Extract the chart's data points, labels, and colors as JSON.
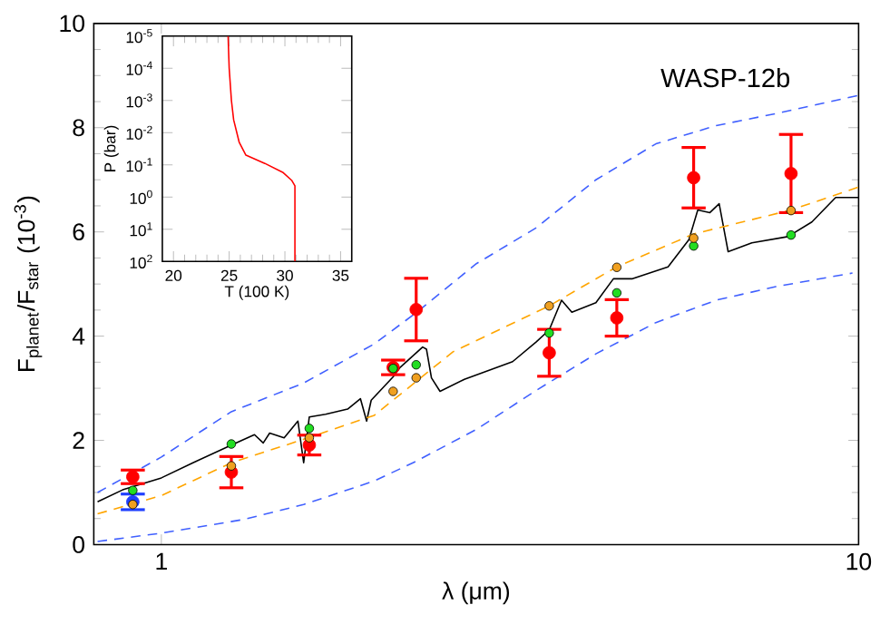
{
  "chart_data": [
    {
      "type": "line",
      "xlabel": "λ (μm)",
      "ylabel": "F$_{planet}$/F$_{star}$ (10$^{-3}$)",
      "log": "x",
      "xlim": [
        0.8,
        10
      ],
      "xticks": [
        1,
        10
      ],
      "ylim": [
        0,
        10
      ],
      "yticks": [
        0,
        2,
        4,
        6,
        8,
        10
      ],
      "annotations": [
        "WASP-12b"
      ],
      "series": [
        {
          "type": "line",
          "color": "#000000",
          "x": [
            0.81,
            0.88,
            1.0,
            1.11,
            1.26,
            1.36,
            1.4,
            1.43,
            1.5,
            1.57,
            1.6,
            1.63,
            1.72,
            1.85,
            1.93,
            1.97,
            2.0,
            2.15,
            2.2,
            2.37,
            2.4,
            2.44,
            2.51,
            2.72,
            3.19,
            3.45,
            3.6,
            3.75,
            3.88,
            4.2,
            4.45,
            4.73,
            5.33,
            5.71,
            5.88,
            6.12,
            6.31,
            6.5,
            7.03,
            7.92,
            8.57,
            9.27,
            10.0
          ],
          "values": [
            0.82,
            1.05,
            1.28,
            1.57,
            1.91,
            2.11,
            1.95,
            2.14,
            2.05,
            2.37,
            1.57,
            2.45,
            2.5,
            2.6,
            2.8,
            2.37,
            2.77,
            3.22,
            3.4,
            3.79,
            3.75,
            3.2,
            2.94,
            3.17,
            3.51,
            3.89,
            4.12,
            4.69,
            4.46,
            4.64,
            5.1,
            5.1,
            5.33,
            5.85,
            6.42,
            6.37,
            6.54,
            5.62,
            5.79,
            5.91,
            6.19,
            6.66,
            6.66
          ]
        },
        {
          "type": "line",
          "color": "#4060ff",
          "line_style": "dashed",
          "x": [
            0.81,
            1.0,
            1.26,
            1.6,
            2.02,
            2.32,
            2.83,
            3.45,
            4.2,
            5.12,
            6.25,
            7.61,
            10.0
          ],
          "values": [
            1.0,
            1.68,
            2.55,
            3.1,
            3.85,
            4.45,
            5.39,
            6.08,
            7.0,
            7.69,
            8.04,
            8.27,
            8.62
          ]
        },
        {
          "type": "line",
          "color": "#4060ff",
          "line_style": "dashed",
          "x": [
            0.81,
            1.0,
            1.31,
            1.6,
            2.02,
            2.32,
            2.83,
            3.45,
            4.2,
            5.12,
            6.25,
            7.61,
            9.8
          ],
          "values": [
            0.06,
            0.22,
            0.48,
            0.77,
            1.22,
            1.6,
            2.21,
            2.96,
            3.66,
            4.26,
            4.69,
            4.95,
            5.21
          ]
        },
        {
          "type": "line",
          "color": "#ffa500",
          "line_style": "dashed",
          "x": [
            0.81,
            1.0,
            1.26,
            1.6,
            2.02,
            2.62,
            3.6,
            4.5,
            5.8,
            8.0,
            10.0
          ],
          "values": [
            0.59,
            0.94,
            1.57,
            2.02,
            2.48,
            3.7,
            4.58,
            5.33,
            5.96,
            6.42,
            6.86
          ]
        },
        {
          "type": "scatter",
          "color": "#ff0000",
          "marker": "circle",
          "x": [
            0.91,
            1.26,
            1.63,
            2.15,
            2.32,
            3.6,
            4.5,
            5.8,
            8.0
          ],
          "values": [
            1.3,
            1.39,
            1.91,
            3.4,
            4.51,
            3.68,
            4.35,
            7.04,
            7.12
          ],
          "errors": [
            0.13,
            0.3,
            0.19,
            0.14,
            0.6,
            0.45,
            0.35,
            0.58,
            0.75
          ]
        },
        {
          "type": "scatter",
          "color": "#1f3fff",
          "marker": "circle",
          "x": [
            0.91
          ],
          "values": [
            0.82
          ],
          "errors": [
            0.15
          ]
        },
        {
          "type": "scatter",
          "color": "#22dd22",
          "marker": "circle",
          "x": [
            0.91,
            1.26,
            1.63,
            2.15,
            2.32,
            3.6,
            4.5,
            5.8,
            8.0
          ],
          "values": [
            1.04,
            1.93,
            2.23,
            3.38,
            3.45,
            4.06,
            4.83,
            5.73,
            5.94
          ]
        },
        {
          "type": "scatter",
          "color": "#f0a020",
          "marker": "circle",
          "x": [
            0.91,
            1.26,
            1.63,
            2.15,
            2.32,
            3.6,
            4.5,
            5.8,
            8.0
          ],
          "values": [
            0.77,
            1.51,
            2.05,
            2.94,
            3.2,
            4.58,
            5.32,
            5.88,
            6.41
          ]
        }
      ]
    },
    {
      "type": "line",
      "xlabel": "T (100 K)",
      "ylabel": "P (bar)",
      "log": "y",
      "xlim": [
        19,
        36
      ],
      "xticks": [
        20,
        25,
        30,
        35
      ],
      "ylim": [
        100,
        1e-05
      ],
      "yticks": [
        {
          "value": 1e-05,
          "label": "10$^{-5}$"
        },
        {
          "value": 0.0001,
          "label": "10$^{-4}$"
        },
        {
          "value": 0.001,
          "label": "10$^{-3}$"
        },
        {
          "value": 0.01,
          "label": "10$^{-2}$"
        },
        {
          "value": 0.1,
          "label": "10$^{-1}$"
        },
        {
          "value": 1,
          "label": "10$^{0}$"
        },
        {
          "value": 10,
          "label": "10$^{1}$"
        },
        {
          "value": 100,
          "label": "10$^{2}$"
        }
      ],
      "series": [
        {
          "color": "#ff0000",
          "x": [
            24.9,
            25.0,
            25.2,
            25.4,
            25.9,
            26.5,
            28.2,
            29.8,
            30.6,
            30.9,
            30.9
          ],
          "values": [
            1e-05,
            0.0001,
            0.001,
            0.004,
            0.02,
            0.05,
            0.09,
            0.17,
            0.3,
            0.45,
            100
          ]
        }
      ]
    }
  ]
}
